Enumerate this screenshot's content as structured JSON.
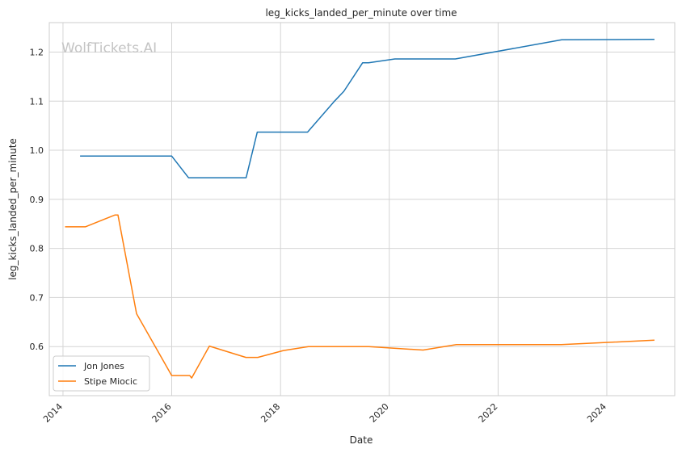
{
  "chart_data": {
    "type": "line",
    "title": "leg_kicks_landed_per_minute over time",
    "xlabel": "Date",
    "ylabel": "leg_kicks_landed_per_minute",
    "watermark": "WolfTickets.AI",
    "xlim": [
      "2013-10-01",
      "2025-04-01"
    ],
    "ylim": [
      0.5,
      1.26
    ],
    "x_ticks": [
      "2014",
      "2016",
      "2018",
      "2020",
      "2022",
      "2024"
    ],
    "y_ticks": [
      "0.6",
      "0.7",
      "0.8",
      "0.9",
      "1.0",
      "1.1",
      "1.2"
    ],
    "grid": true,
    "legend_position": "bottom-left",
    "series": [
      {
        "name": "Jon Jones",
        "color": "#1f77b4",
        "points": [
          [
            "2014-04-26",
            0.988
          ],
          [
            "2016-01-01",
            0.988
          ],
          [
            "2016-04-23",
            0.944
          ],
          [
            "2017-05-15",
            0.944
          ],
          [
            "2017-07-29",
            1.037
          ],
          [
            "2018-07-01",
            1.037
          ],
          [
            "2018-12-29",
            1.1
          ],
          [
            "2019-03-02",
            1.12
          ],
          [
            "2019-07-06",
            1.178
          ],
          [
            "2019-08-15",
            1.178
          ],
          [
            "2020-02-08",
            1.186
          ],
          [
            "2021-03-20",
            1.186
          ],
          [
            "2023-03-04",
            1.225
          ],
          [
            "2024-11-16",
            1.226
          ]
        ]
      },
      {
        "name": "Stipe Miocic",
        "color": "#ff7f0e",
        "points": [
          [
            "2014-01-15",
            0.844
          ],
          [
            "2014-05-31",
            0.844
          ],
          [
            "2014-12-15",
            0.868
          ],
          [
            "2015-01-05",
            0.868
          ],
          [
            "2015-05-10",
            0.667
          ],
          [
            "2016-01-01",
            0.541
          ],
          [
            "2016-05-01",
            0.541
          ],
          [
            "2016-05-14",
            0.536
          ],
          [
            "2016-09-10",
            0.601
          ],
          [
            "2017-05-13",
            0.578
          ],
          [
            "2017-08-01",
            0.578
          ],
          [
            "2018-01-20",
            0.592
          ],
          [
            "2018-07-07",
            0.6
          ],
          [
            "2019-08-17",
            0.6
          ],
          [
            "2020-08-15",
            0.593
          ],
          [
            "2021-03-27",
            0.604
          ],
          [
            "2023-03-01",
            0.604
          ],
          [
            "2024-11-16",
            0.613
          ]
        ]
      }
    ]
  }
}
